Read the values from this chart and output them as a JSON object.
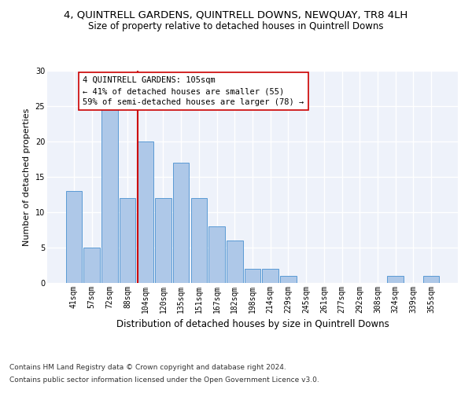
{
  "title": "4, QUINTRELL GARDENS, QUINTRELL DOWNS, NEWQUAY, TR8 4LH",
  "subtitle": "Size of property relative to detached houses in Quintrell Downs",
  "xlabel": "Distribution of detached houses by size in Quintrell Downs",
  "ylabel": "Number of detached properties",
  "bar_labels": [
    "41sqm",
    "57sqm",
    "72sqm",
    "88sqm",
    "104sqm",
    "120sqm",
    "135sqm",
    "151sqm",
    "167sqm",
    "182sqm",
    "198sqm",
    "214sqm",
    "229sqm",
    "245sqm",
    "261sqm",
    "277sqm",
    "292sqm",
    "308sqm",
    "324sqm",
    "339sqm",
    "355sqm"
  ],
  "bar_values": [
    13,
    5,
    25,
    12,
    20,
    12,
    17,
    12,
    8,
    6,
    2,
    2,
    1,
    0,
    0,
    0,
    0,
    0,
    1,
    0,
    1
  ],
  "bar_color": "#aec8e8",
  "bar_edgecolor": "#5a9ad5",
  "vline_x_index": 4,
  "vline_color": "#cc0000",
  "annotation_text": "4 QUINTRELL GARDENS: 105sqm\n← 41% of detached houses are smaller (55)\n59% of semi-detached houses are larger (78) →",
  "annotation_box_edgecolor": "#cc0000",
  "ylim": [
    0,
    30
  ],
  "yticks": [
    0,
    5,
    10,
    15,
    20,
    25,
    30
  ],
  "footer_line1": "Contains HM Land Registry data © Crown copyright and database right 2024.",
  "footer_line2": "Contains public sector information licensed under the Open Government Licence v3.0.",
  "bg_color": "#eef2fa",
  "grid_color": "#ffffff",
  "title_fontsize": 9.5,
  "subtitle_fontsize": 8.5,
  "xlabel_fontsize": 8.5,
  "ylabel_fontsize": 8,
  "tick_fontsize": 7,
  "annotation_fontsize": 7.5,
  "footer_fontsize": 6.5
}
